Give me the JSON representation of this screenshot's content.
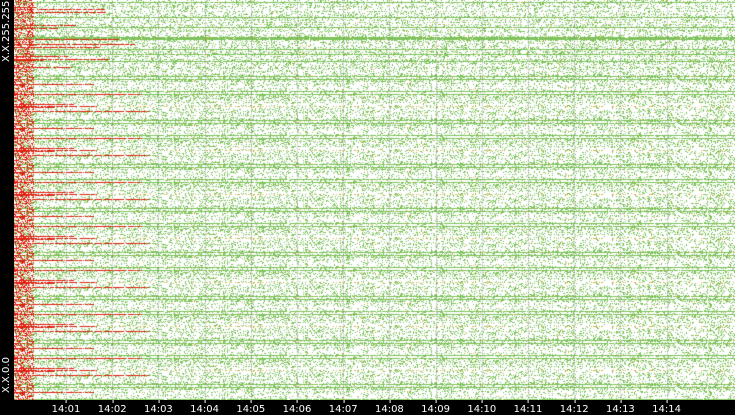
{
  "chart_data": {
    "type": "heatmap",
    "title": "",
    "xlabel": "",
    "ylabel": "",
    "x_ticks": [
      "14:01",
      "14:02",
      "14:03",
      "14:04",
      "14:05",
      "14:06",
      "14:07",
      "14:08",
      "14:09",
      "14:10",
      "14:11",
      "14:12",
      "14:13",
      "14:14"
    ],
    "y_ticks": [
      "X.X.0.0",
      "X.X.255.255"
    ],
    "x_start": "14:00",
    "x_end": "14:15",
    "grid": true,
    "colors": {
      "background": "#ffffff",
      "low": "#7dc25a",
      "mid": "#e0b040",
      "high": "#e02010",
      "frame": "#000000",
      "text": "#ffffff"
    },
    "description_of_pattern": ""
  }
}
